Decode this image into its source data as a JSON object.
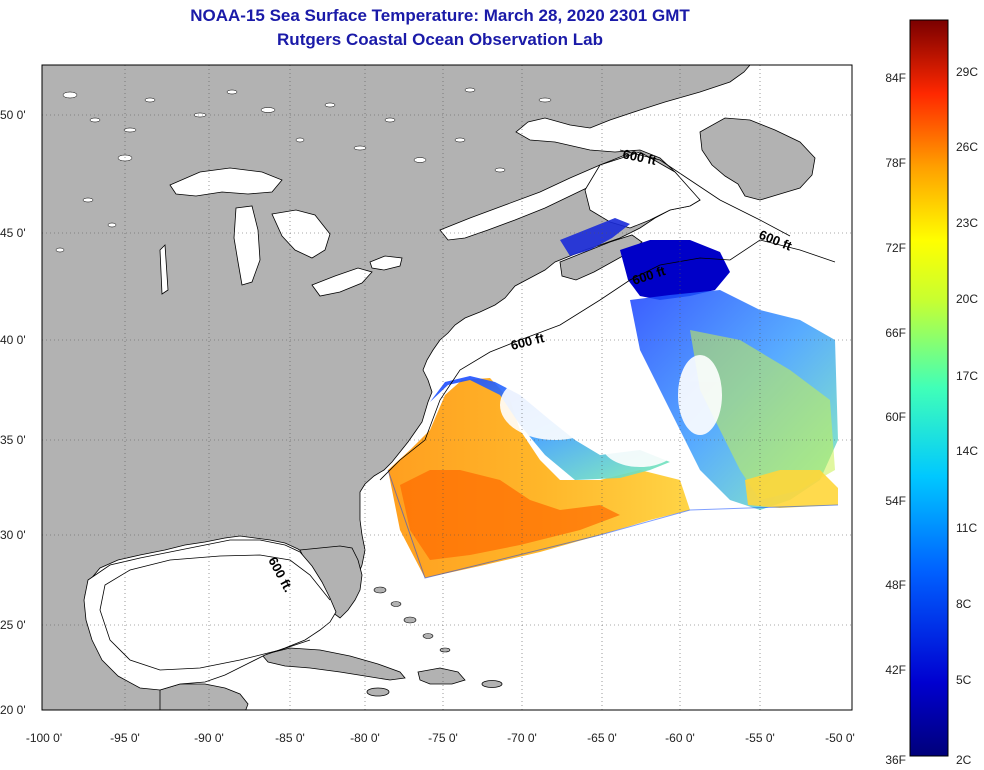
{
  "header": {
    "title": "NOAA-15 Sea Surface Temperature:  March 28, 2020 2301 GMT",
    "subtitle": "Rutgers Coastal Ocean Observation Lab"
  },
  "axes": {
    "lat_labels": [
      "50 0'",
      "45 0'",
      "40 0'",
      "35 0'",
      "30 0'",
      "25 0'",
      "20 0'"
    ],
    "lon_labels": [
      "-100 0'",
      "-95 0'",
      "-90 0'",
      "-85 0'",
      "-80 0'",
      "-75 0'",
      "-70 0'",
      "-65 0'",
      "-60 0'",
      "-55 0'",
      "-50 0'"
    ]
  },
  "contours": {
    "label": "600 ft",
    "gulf_label": "600 ft."
  },
  "colorbar": {
    "fahrenheit": [
      "84F",
      "78F",
      "72F",
      "66F",
      "60F",
      "54F",
      "48F",
      "42F",
      "36F"
    ],
    "celsius": [
      "29C",
      "26C",
      "23C",
      "20C",
      "17C",
      "14C",
      "11C",
      "8C",
      "5C",
      "2C"
    ]
  },
  "colors": {
    "land": "#b2b2b2",
    "title": "#1a1aa8",
    "ocean": "#ffffff"
  }
}
